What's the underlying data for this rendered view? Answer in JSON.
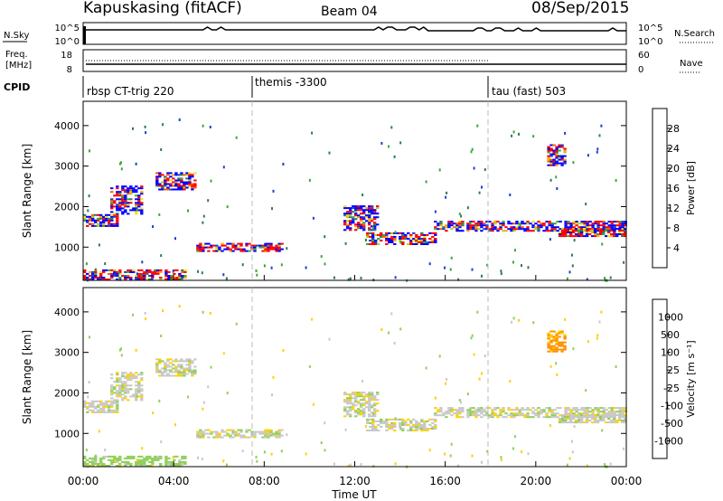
{
  "header": {
    "station": "Kapuskasing (fitACF)",
    "beam": "Beam 04",
    "date": "08/Sep/2015"
  },
  "nsky_panel": {
    "left_label": "N.Sky",
    "left_ticks": [
      "10^5",
      "10^0"
    ],
    "right_ticks": [
      "10^5",
      "10^0"
    ],
    "right_label": "N.Search",
    "right_legend_style": "dotted"
  },
  "freq_panel": {
    "left_label_line1": "Freq.",
    "left_label_line2": "[MHz]",
    "left_ticks": [
      18,
      8
    ],
    "right_ticks": [
      60,
      0
    ],
    "right_label": "Nave",
    "right_legend_style": "dotted"
  },
  "cpid_panel": {
    "label": "CPID",
    "segments": [
      {
        "name": "rbsp CT-trig 220",
        "start_hour": 0
      },
      {
        "name": "themis -3300",
        "start_hour": 7.5
      },
      {
        "name": "tau (fast) 503",
        "start_hour": 18
      }
    ]
  },
  "x_axis": {
    "label": "Time UT",
    "ticks": [
      "00:00",
      "04:00",
      "08:00",
      "12:00",
      "16:00",
      "20:00",
      "00:00"
    ],
    "range_hours": [
      0,
      24
    ]
  },
  "y_axis": {
    "label": "Slant Range [km]",
    "ticks": [
      1000,
      2000,
      3000,
      4000
    ],
    "range_km": [
      180,
      4600
    ]
  },
  "power_colorbar": {
    "label": "Power [dB]",
    "ticks": [
      "28",
      "24",
      "20",
      "16",
      "12",
      "8",
      "4"
    ],
    "colors": [
      "#0000ff",
      "#1f3fd0",
      "#2f7a5a",
      "#3aa83a",
      "#a8d428",
      "#f0e01e",
      "#ffa500",
      "#ff5a00",
      "#ff0000"
    ]
  },
  "velocity_colorbar": {
    "label": "Velocity [m s⁻¹]",
    "ticks": [
      "1000",
      "500",
      "100",
      "25",
      "-25",
      "-100",
      "-500",
      "-1000"
    ],
    "colors": [
      "#1f3fd0",
      "#2f7a5a",
      "#3aa83a",
      "#8fd05a",
      "#c8c8c8",
      "#ffd000",
      "#ff9000",
      "#ff5000",
      "#ff0000"
    ]
  },
  "chart_data": [
    {
      "type": "heatmap",
      "title": "Power",
      "xlabel": "Time UT",
      "ylabel": "Slant Range [km]",
      "colorbar_label": "Power [dB]",
      "echo_bands": [
        {
          "t_start": 0.0,
          "t_end": 1.5,
          "range_start": 1500,
          "range_end": 1800,
          "power_db": 9
        },
        {
          "t_start": 1.2,
          "t_end": 2.6,
          "range_start": 1800,
          "range_end": 2500,
          "power_db": 9
        },
        {
          "t_start": 3.2,
          "t_end": 5.0,
          "range_start": 2400,
          "range_end": 2850,
          "power_db": 10
        },
        {
          "t_start": 5.0,
          "t_end": 8.8,
          "range_start": 880,
          "range_end": 1100,
          "power_db": 16
        },
        {
          "t_start": 11.5,
          "t_end": 13.0,
          "range_start": 1400,
          "range_end": 2000,
          "power_db": 9
        },
        {
          "t_start": 12.5,
          "t_end": 15.5,
          "range_start": 1050,
          "range_end": 1350,
          "power_db": 18
        },
        {
          "t_start": 15.5,
          "t_end": 24.0,
          "range_start": 1380,
          "range_end": 1620,
          "power_db": 9
        },
        {
          "t_start": 21.0,
          "t_end": 24.0,
          "range_start": 1250,
          "range_end": 1450,
          "power_db": 20
        },
        {
          "t_start": 0.0,
          "t_end": 4.5,
          "range_start": 180,
          "range_end": 450,
          "power_db": 24
        },
        {
          "t_start": 20.5,
          "t_end": 21.3,
          "range_start": 3000,
          "range_end": 3500,
          "power_db": 10
        }
      ]
    },
    {
      "type": "heatmap",
      "title": "Velocity",
      "xlabel": "Time UT",
      "ylabel": "Slant Range [km]",
      "colorbar_label": "Velocity [m s⁻¹]",
      "echo_bands": [
        {
          "t_start": 0.0,
          "t_end": 1.5,
          "range_start": 1500,
          "range_end": 1800,
          "velocity": 0
        },
        {
          "t_start": 1.2,
          "t_end": 2.6,
          "range_start": 1800,
          "range_end": 2500,
          "velocity": 0
        },
        {
          "t_start": 3.2,
          "t_end": 5.0,
          "range_start": 2400,
          "range_end": 2850,
          "velocity": 0
        },
        {
          "t_start": 5.0,
          "t_end": 8.8,
          "range_start": 880,
          "range_end": 1100,
          "velocity": 0
        },
        {
          "t_start": 11.5,
          "t_end": 13.0,
          "range_start": 1400,
          "range_end": 2000,
          "velocity": 0
        },
        {
          "t_start": 12.5,
          "t_end": 15.5,
          "range_start": 1050,
          "range_end": 1350,
          "velocity": 0
        },
        {
          "t_start": 15.5,
          "t_end": 24.0,
          "range_start": 1380,
          "range_end": 1620,
          "velocity": 0
        },
        {
          "t_start": 21.0,
          "t_end": 24.0,
          "range_start": 1250,
          "range_end": 1450,
          "velocity": 0
        },
        {
          "t_start": 0.0,
          "t_end": 4.5,
          "range_start": 180,
          "range_end": 450,
          "velocity": 60
        },
        {
          "t_start": 20.5,
          "t_end": 21.3,
          "range_start": 3000,
          "range_end": 3500,
          "velocity": -120
        }
      ]
    }
  ]
}
